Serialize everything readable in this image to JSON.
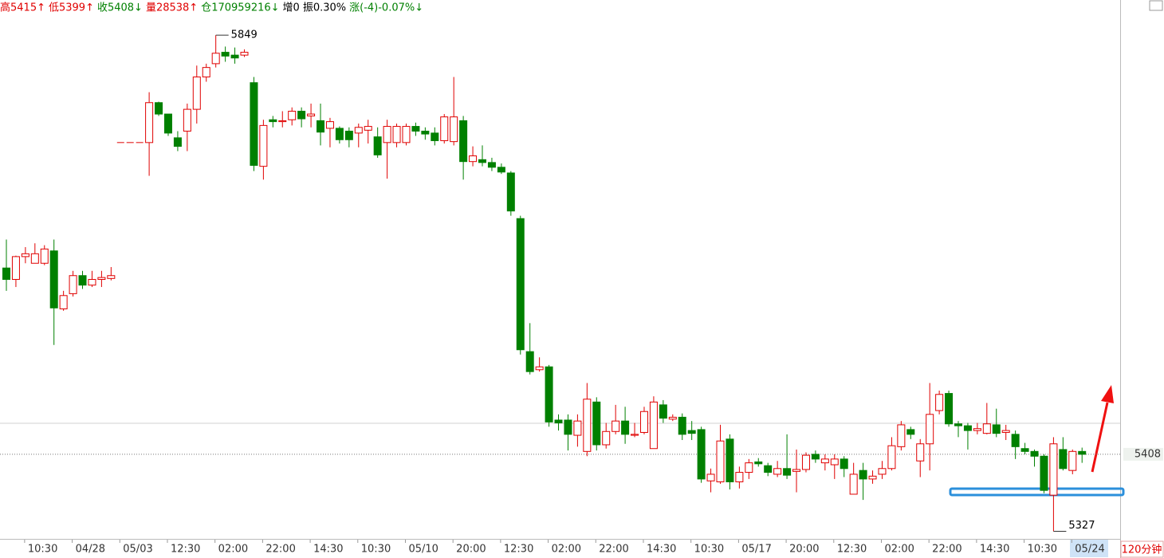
{
  "chart_data": {
    "type": "candlestick",
    "info": [
      {
        "text": "高5415↑",
        "color": "#e00000"
      },
      {
        "text": "低5399↑",
        "color": "#e00000"
      },
      {
        "text": "收5408↓",
        "color": "#008000"
      },
      {
        "text": "量28538↑",
        "color": "#e00000"
      },
      {
        "text": "仓170959216↓",
        "color": "#008000"
      },
      {
        "text": "增0",
        "color": "#000000"
      },
      {
        "text": "振0.30%",
        "color": "#000000"
      },
      {
        "text": "涨(-4)-0.07%↓",
        "color": "#008000"
      }
    ],
    "period": "120分钟",
    "up_color": "#e00000",
    "down_color": "#008000",
    "ylim": [
      5319,
      5886
    ],
    "categories": [
      null,
      null,
      "10:30",
      null,
      null,
      null,
      null,
      "04/28",
      null,
      null,
      null,
      null,
      "05/03",
      null,
      null,
      null,
      null,
      "12:30",
      null,
      null,
      null,
      null,
      "02:00",
      null,
      null,
      null,
      null,
      "22:00",
      null,
      null,
      null,
      null,
      "14:30",
      null,
      null,
      null,
      null,
      "10:30",
      null,
      null,
      null,
      null,
      "05/10",
      null,
      null,
      null,
      null,
      "20:00",
      null,
      null,
      null,
      null,
      "12:30",
      null,
      null,
      null,
      null,
      "02:00",
      null,
      null,
      null,
      null,
      "22:00",
      null,
      null,
      null,
      null,
      "14:30",
      null,
      null,
      null,
      null,
      "10:30",
      null,
      null,
      null,
      null,
      "05/17",
      null,
      null,
      null,
      null,
      "20:00",
      null,
      null,
      null,
      null,
      "12:30",
      null,
      null,
      null,
      null,
      "02:00",
      null,
      null,
      null,
      null,
      "22:00",
      null,
      null,
      null,
      null,
      "14:30",
      null,
      null,
      null,
      null,
      "10:30",
      null,
      null,
      null,
      null,
      "05/24",
      null
    ],
    "open": [
      5604,
      5592,
      5616,
      5609,
      5609,
      5622,
      5561,
      5577,
      5596,
      5586,
      5592,
      5593,
      5736,
      5736,
      5736,
      5736,
      5778,
      5766,
      5741,
      5748,
      5771,
      5805,
      5819,
      5831,
      5828,
      5828,
      5799,
      5711,
      5760,
      5758,
      5760,
      5769,
      5764,
      5759,
      5751,
      5751,
      5748,
      5746,
      5749,
      5742,
      5736,
      5736,
      5736,
      5753,
      5748,
      5746,
      5738,
      5737,
      5759,
      5716,
      5718,
      5715,
      5710,
      5704,
      5656,
      5516,
      5497,
      5500,
      5444,
      5444,
      5428,
      5411,
      5463,
      5418,
      5432,
      5443,
      5428,
      5431,
      5414,
      5460,
      5445,
      5447,
      5433,
      5434,
      5380,
      5379,
      5424,
      5379,
      5389,
      5400,
      5396,
      5387,
      5393,
      5390,
      5392,
      5408,
      5399,
      5397,
      5403,
      5366,
      5391,
      5382,
      5387,
      5393,
      5416,
      5434,
      5401,
      5419,
      5454,
      5472,
      5440,
      5438,
      5433,
      5430,
      5439,
      5431,
      5429,
      5414,
      5411,
      5406,
      5365,
      5413,
      5391,
      5411
    ],
    "high": [
      5634,
      5617,
      5626,
      5630,
      5628,
      5634,
      5580,
      5601,
      5601,
      5601,
      5601,
      5605,
      5736,
      5736,
      5736,
      5789,
      5779,
      5766,
      5748,
      5777,
      5817,
      5819,
      5849,
      5837,
      5836,
      5834,
      5805,
      5760,
      5764,
      5769,
      5773,
      5773,
      5777,
      5777,
      5762,
      5753,
      5752,
      5756,
      5760,
      5752,
      5760,
      5756,
      5756,
      5757,
      5752,
      5752,
      5766,
      5805,
      5764,
      5732,
      5733,
      5720,
      5714,
      5706,
      5659,
      5546,
      5510,
      5502,
      5450,
      5450,
      5450,
      5483,
      5468,
      5441,
      5460,
      5458,
      5441,
      5458,
      5469,
      5465,
      5450,
      5451,
      5443,
      5437,
      5393,
      5439,
      5429,
      5395,
      5403,
      5404,
      5399,
      5401,
      5429,
      5413,
      5410,
      5412,
      5408,
      5408,
      5406,
      5399,
      5399,
      5391,
      5401,
      5426,
      5443,
      5437,
      5424,
      5483,
      5475,
      5475,
      5443,
      5441,
      5441,
      5462,
      5456,
      5439,
      5433,
      5420,
      5413,
      5408,
      5426,
      5426,
      5413,
      5415
    ],
    "low": [
      5580,
      5584,
      5609,
      5609,
      5607,
      5523,
      5559,
      5574,
      5582,
      5584,
      5584,
      5591,
      5736,
      5736,
      5736,
      5701,
      5764,
      5743,
      5727,
      5727,
      5756,
      5800,
      5815,
      5821,
      5819,
      5826,
      5706,
      5697,
      5752,
      5752,
      5754,
      5752,
      5752,
      5733,
      5731,
      5735,
      5731,
      5731,
      5735,
      5720,
      5698,
      5731,
      5733,
      5743,
      5739,
      5733,
      5735,
      5733,
      5697,
      5711,
      5711,
      5706,
      5703,
      5659,
      5513,
      5492,
      5495,
      5437,
      5433,
      5412,
      5416,
      5406,
      5412,
      5414,
      5429,
      5419,
      5426,
      5429,
      5414,
      5441,
      5443,
      5423,
      5423,
      5378,
      5368,
      5377,
      5371,
      5372,
      5382,
      5395,
      5385,
      5384,
      5382,
      5368,
      5389,
      5399,
      5391,
      5382,
      5384,
      5366,
      5360,
      5377,
      5382,
      5391,
      5412,
      5424,
      5384,
      5391,
      5450,
      5437,
      5426,
      5413,
      5429,
      5429,
      5426,
      5423,
      5403,
      5408,
      5395,
      5367,
      5327,
      5391,
      5387,
      5399
    ],
    "close": [
      5592,
      5616,
      5619,
      5619,
      5624,
      5562,
      5575,
      5596,
      5586,
      5592,
      5594,
      5596,
      5736,
      5736,
      5736,
      5778,
      5766,
      5746,
      5732,
      5771,
      5805,
      5815,
      5830,
      5827,
      5825,
      5831,
      5712,
      5754,
      5758,
      5759,
      5769,
      5761,
      5766,
      5747,
      5758,
      5739,
      5739,
      5752,
      5753,
      5723,
      5753,
      5753,
      5753,
      5748,
      5745,
      5738,
      5763,
      5763,
      5716,
      5722,
      5715,
      5710,
      5705,
      5664,
      5518,
      5495,
      5500,
      5442,
      5441,
      5429,
      5443,
      5466,
      5418,
      5432,
      5443,
      5429,
      5429,
      5453,
      5463,
      5446,
      5447,
      5429,
      5430,
      5382,
      5387,
      5422,
      5379,
      5389,
      5399,
      5398,
      5389,
      5393,
      5386,
      5392,
      5407,
      5403,
      5403,
      5403,
      5393,
      5387,
      5382,
      5385,
      5393,
      5417,
      5439,
      5429,
      5419,
      5450,
      5471,
      5440,
      5438,
      5433,
      5435,
      5440,
      5430,
      5433,
      5416,
      5411,
      5406,
      5370,
      5419,
      5393,
      5411,
      5408
    ]
  }
}
